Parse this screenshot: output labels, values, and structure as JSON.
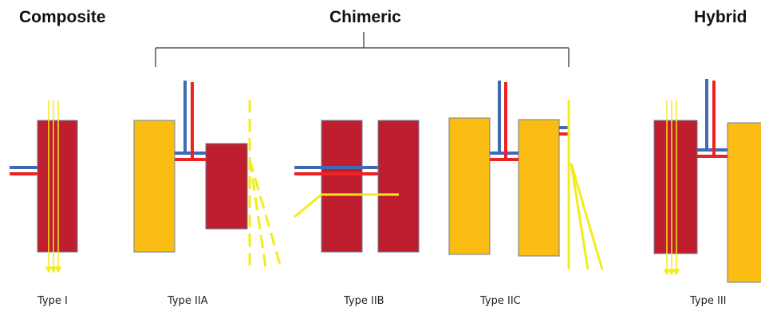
{
  "headings": {
    "composite": "Composite",
    "chimeric": "Chimeric",
    "hybrid": "Hybrid"
  },
  "type_labels": {
    "type_i": "Type I",
    "type_iia": "Type IIA",
    "type_iib": "Type IIB",
    "type_iic": "Type IIC",
    "type_iii": "Type III"
  },
  "colors": {
    "muscle_flap": "#be1e2d",
    "skin_flap": "#fbbd14",
    "flap_border": "#6a7f95",
    "artery": "#ee2222",
    "vein": "#3f6bb5",
    "perforator": "#f3ec1c",
    "bracket": "#555555"
  }
}
